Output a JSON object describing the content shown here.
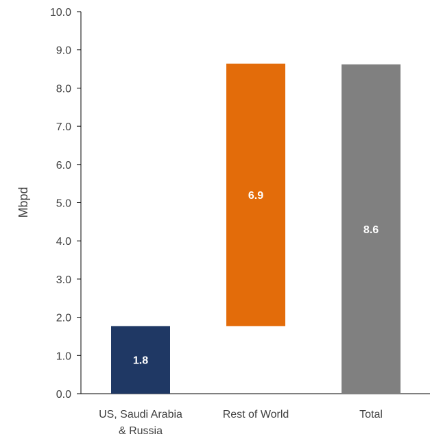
{
  "chart_data": {
    "type": "bar",
    "subtype": "waterfall",
    "categories": [
      "US, Saudi Arabia & Russia",
      "Rest of World",
      "Total"
    ],
    "category_label_lines": [
      [
        "US, Saudi Arabia",
        "& Russia"
      ],
      [
        "Rest of World"
      ],
      [
        "Total"
      ]
    ],
    "bars": [
      {
        "category": "US, Saudi Arabia & Russia",
        "base": 0,
        "value": 1.77,
        "label": "1.8",
        "color": "#1f3864"
      },
      {
        "category": "Rest of World",
        "base": 1.77,
        "value": 6.87,
        "label": "6.9",
        "color": "#e36c0a"
      },
      {
        "category": "Total",
        "base": 0,
        "value": 8.62,
        "label": "8.6",
        "color": "#808080"
      }
    ],
    "title": "",
    "xlabel": "",
    "ylabel": "Mbpd",
    "ylim": [
      0,
      10
    ],
    "yticks": [
      "0.0",
      "1.0",
      "2.0",
      "3.0",
      "4.0",
      "5.0",
      "6.0",
      "7.0",
      "8.0",
      "9.0",
      "10.0"
    ],
    "grid": false,
    "legend": "none"
  }
}
